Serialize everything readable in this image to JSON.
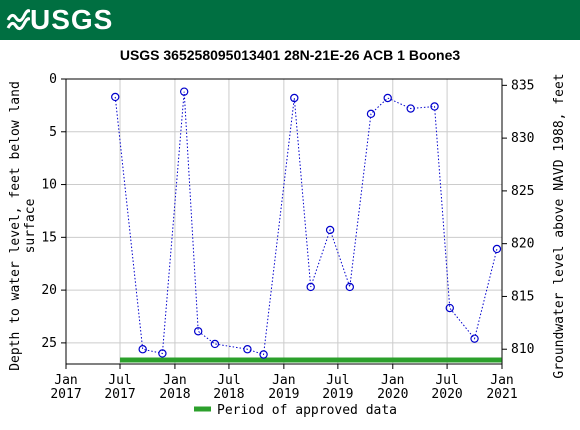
{
  "banner": {
    "logo_text": "USGS"
  },
  "chart_data": {
    "type": "scatter",
    "title": "USGS 365258095013401 28N-21E-26 ACB 1 Boone3",
    "ylabel_left_line1": "Depth to water level, feet below land",
    "ylabel_left_line2": "surface",
    "ylabel_right": "Groundwater level above NAVD 1988, feet",
    "y_left_ticks": [
      "0",
      "5",
      "10",
      "15",
      "20",
      "25"
    ],
    "y_left_range": [
      0,
      27
    ],
    "y_right_ticks": [
      "835",
      "830",
      "825",
      "820",
      "815",
      "810"
    ],
    "y_right_range": [
      835.6,
      808.6
    ],
    "x_tick_labels": [
      [
        "Jan",
        "2017"
      ],
      [
        "Jul",
        "2017"
      ],
      [
        "Jan",
        "2018"
      ],
      [
        "Jul",
        "2018"
      ],
      [
        "Jan",
        "2019"
      ],
      [
        "Jul",
        "2019"
      ],
      [
        "Jan",
        "2020"
      ],
      [
        "Jul",
        "2020"
      ],
      [
        "Jan",
        "2021"
      ]
    ],
    "x_range": [
      "2017-01-01",
      "2021-01-01"
    ],
    "series": [
      {
        "x": [
          "2017-06-15",
          "2017-09-15",
          "2017-11-20",
          "2018-02-01",
          "2018-03-20",
          "2018-05-15",
          "2018-09-01",
          "2018-10-25",
          "2019-02-05",
          "2019-04-01",
          "2019-06-05",
          "2019-08-10",
          "2019-10-20",
          "2019-12-15",
          "2020-03-01",
          "2020-05-20",
          "2020-07-10",
          "2020-10-01",
          "2020-12-15"
        ],
        "values": [
          1.7,
          25.6,
          26.0,
          1.2,
          23.9,
          25.1,
          25.6,
          26.1,
          1.8,
          19.7,
          14.3,
          19.7,
          3.3,
          1.8,
          2.8,
          2.6,
          21.7,
          24.6,
          16.1
        ]
      }
    ],
    "approved_period": [
      "2017-07-01",
      "2020-12-31"
    ],
    "legend_label": "Period of approved data",
    "colors": {
      "series": "#0000cc",
      "approved": "#2ca02c",
      "grid": "#cccccc",
      "banner": "#006f41"
    }
  }
}
